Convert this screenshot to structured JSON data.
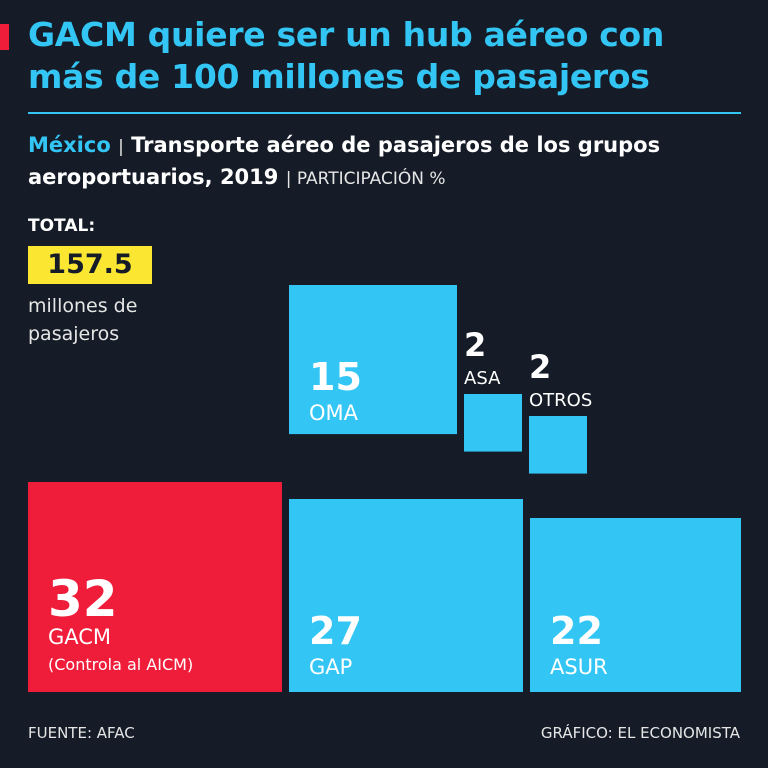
{
  "header": {
    "title": "GACM quiere ser un hub aéreo con más de 100 millones de pasajeros",
    "country": "México",
    "separator": "|",
    "subtitle": "Transporte aéreo de pasajeros de los grupos aeroportuarios, 2019",
    "unit": "| PARTICIPACIÓN %"
  },
  "total": {
    "label": "TOTAL:",
    "value": "157.5",
    "unit": "millones de pasajeros"
  },
  "footer": {
    "source": "FUENTE: AFAC",
    "credit": "GRÁFICO: EL ECONOMISTA"
  },
  "colors": {
    "highlight": "#ef1c3a",
    "primary": "#33c6f5",
    "total_box": "#fbe731",
    "background": "#151c27"
  },
  "chart_data": {
    "type": "treemap",
    "unit": "%",
    "items": [
      {
        "name": "GACM",
        "value": 32,
        "note": "(Controla al AICM)",
        "color": "#ef1c3a"
      },
      {
        "name": "GAP",
        "value": 27,
        "note": "",
        "color": "#33c6f5"
      },
      {
        "name": "ASUR",
        "value": 22,
        "note": "",
        "color": "#33c6f5"
      },
      {
        "name": "OMA",
        "value": 15,
        "note": "",
        "color": "#33c6f5"
      },
      {
        "name": "ASA",
        "value": 2,
        "note": "",
        "color": "#33c6f5"
      },
      {
        "name": "OTROS",
        "value": 2,
        "note": "",
        "color": "#33c6f5"
      }
    ]
  }
}
